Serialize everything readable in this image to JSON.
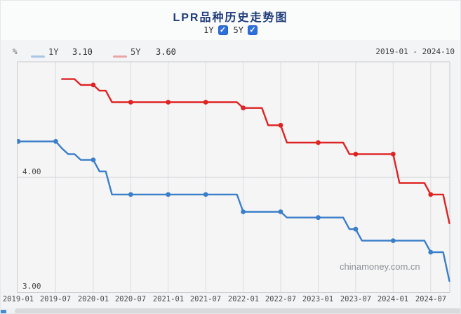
{
  "header": {
    "title": "LPR品种历史走势图"
  },
  "controls": {
    "check_icon": "✓",
    "toggles": [
      {
        "label": "1Y",
        "checked": true
      },
      {
        "label": "5Y",
        "checked": true
      }
    ]
  },
  "legend": {
    "unit": "%",
    "range": "2019-01 - 2024-10",
    "items": [
      {
        "name": "1Y",
        "value": "3.10",
        "swatch_color": "#a9c6e4"
      },
      {
        "name": "5Y",
        "value": "3.60",
        "swatch_color": "#e8a6a6"
      }
    ]
  },
  "watermark": "chinamoney.com.cn",
  "chart_data": {
    "type": "line",
    "title": "LPR品种历史走势图",
    "unit": "%",
    "x_start": "2019-01",
    "x_end": "2024-10",
    "frequency": "monthly",
    "x_tick_labels": [
      "2019-01",
      "2019-07",
      "2020-01",
      "2020-07",
      "2021-01",
      "2021-07",
      "2022-01",
      "2022-07",
      "2023-01",
      "2023-07",
      "2024-01",
      "2024-07"
    ],
    "ylim": [
      3.0,
      5.0
    ],
    "y_tick_labels": [
      "4.00",
      "3.00"
    ],
    "grid": "vertical ticks + horizontal line at 4.00",
    "legend_position": "top-left",
    "marker_indices": [
      0,
      6,
      12,
      18,
      24,
      30,
      36,
      42,
      48,
      54,
      60,
      66
    ],
    "series": [
      {
        "name": "1Y",
        "color": "#3b7ec9",
        "current": "3.10",
        "values": [
          4.31,
          4.31,
          4.31,
          4.31,
          4.31,
          4.31,
          4.31,
          4.25,
          4.2,
          4.2,
          4.15,
          4.15,
          4.15,
          4.05,
          4.05,
          3.85,
          3.85,
          3.85,
          3.85,
          3.85,
          3.85,
          3.85,
          3.85,
          3.85,
          3.85,
          3.85,
          3.85,
          3.85,
          3.85,
          3.85,
          3.85,
          3.85,
          3.85,
          3.85,
          3.85,
          3.85,
          3.7,
          3.7,
          3.7,
          3.7,
          3.7,
          3.7,
          3.7,
          3.65,
          3.65,
          3.65,
          3.65,
          3.65,
          3.65,
          3.65,
          3.65,
          3.65,
          3.65,
          3.55,
          3.55,
          3.45,
          3.45,
          3.45,
          3.45,
          3.45,
          3.45,
          3.45,
          3.45,
          3.45,
          3.45,
          3.45,
          3.35,
          3.35,
          3.35,
          3.1
        ]
      },
      {
        "name": "5Y",
        "color": "#de2323",
        "current": "3.60",
        "values": [
          null,
          null,
          null,
          null,
          null,
          null,
          null,
          4.85,
          4.85,
          4.85,
          4.8,
          4.8,
          4.8,
          4.75,
          4.75,
          4.65,
          4.65,
          4.65,
          4.65,
          4.65,
          4.65,
          4.65,
          4.65,
          4.65,
          4.65,
          4.65,
          4.65,
          4.65,
          4.65,
          4.65,
          4.65,
          4.65,
          4.65,
          4.65,
          4.65,
          4.65,
          4.6,
          4.6,
          4.6,
          4.6,
          4.45,
          4.45,
          4.45,
          4.3,
          4.3,
          4.3,
          4.3,
          4.3,
          4.3,
          4.3,
          4.3,
          4.3,
          4.3,
          4.2,
          4.2,
          4.2,
          4.2,
          4.2,
          4.2,
          4.2,
          4.2,
          3.95,
          3.95,
          3.95,
          3.95,
          3.95,
          3.85,
          3.85,
          3.85,
          3.6
        ]
      }
    ]
  }
}
